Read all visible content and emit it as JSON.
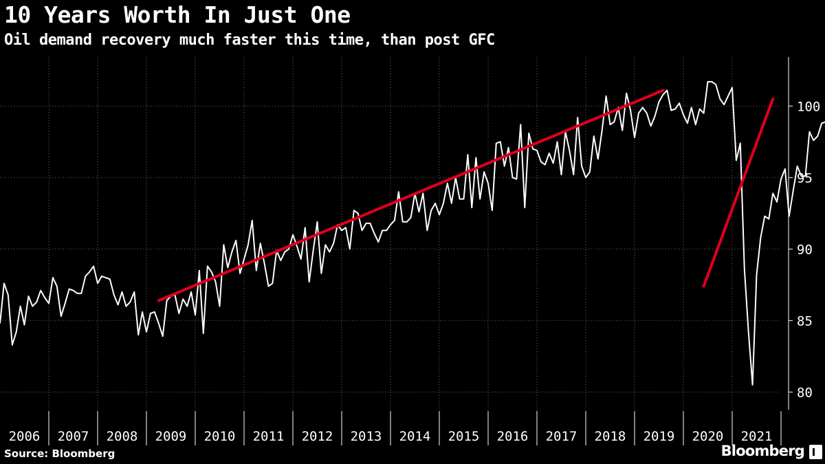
{
  "header": {
    "title": "10 Years Worth In Just One",
    "subtitle": "Oil demand recovery much faster this time, than post GFC"
  },
  "footer": {
    "source": "Source: Bloomberg",
    "brand": "Bloomberg"
  },
  "colors": {
    "background": "#000000",
    "series": "#ffffff",
    "trend": "#e0001b",
    "grid": "#6e6e6e"
  },
  "chart_data": {
    "type": "line",
    "title": "10 Years Worth In Just One",
    "subtitle": "Oil demand recovery much faster this time, than post GFC",
    "xlabel": "",
    "ylabel": "",
    "x_range": [
      "2006-01",
      "2021-12"
    ],
    "ylim": [
      78.5,
      103.5
    ],
    "y_ticks": [
      80,
      85,
      90,
      95,
      100
    ],
    "x_tick_labels": [
      "2006",
      "2007",
      "2008",
      "2009",
      "2010",
      "2011",
      "2012",
      "2013",
      "2014",
      "2015",
      "2016",
      "2017",
      "2018",
      "2019",
      "2020",
      "2021"
    ],
    "y_axis_position": "right",
    "grid": true,
    "legend": "none",
    "series": [
      {
        "start": "2006-01",
        "frequency": "monthly",
        "values": [
          84.8,
          87.6,
          86.8,
          83.3,
          84.2,
          86.0,
          84.7,
          86.7,
          86.0,
          86.3,
          87.1,
          86.6,
          86.2,
          88.0,
          87.4,
          85.3,
          86.2,
          87.2,
          87.1,
          86.9,
          86.9,
          88.1,
          88.4,
          88.8,
          87.6,
          88.1,
          88.0,
          87.9,
          86.8,
          86.1,
          87.0,
          86.0,
          86.3,
          87.0,
          84.0,
          85.6,
          84.2,
          85.5,
          85.6,
          84.8,
          83.9,
          86.4,
          86.7,
          86.8,
          85.5,
          86.5,
          86.0,
          87.0,
          85.4,
          88.5,
          84.1,
          88.8,
          88.4,
          87.7,
          86.0,
          90.3,
          88.7,
          89.8,
          90.6,
          88.3,
          89.3,
          90.3,
          92.0,
          88.5,
          90.4,
          89.0,
          87.4,
          87.6,
          89.9,
          89.2,
          89.8,
          90.0,
          91.0,
          90.2,
          89.3,
          91.5,
          87.7,
          89.9,
          91.9,
          88.3,
          90.3,
          89.8,
          90.4,
          91.7,
          91.3,
          91.5,
          90.0,
          92.7,
          92.5,
          91.3,
          91.8,
          91.8,
          91.1,
          90.5,
          91.3,
          91.3,
          91.7,
          92.0,
          94.0,
          91.9,
          91.9,
          92.2,
          93.9,
          92.6,
          93.9,
          91.3,
          92.7,
          93.2,
          92.4,
          93.2,
          94.6,
          93.2,
          95.0,
          93.5,
          93.5,
          96.6,
          92.9,
          96.4,
          93.5,
          95.4,
          94.6,
          92.7,
          97.4,
          97.5,
          95.8,
          97.1,
          95.0,
          94.9,
          98.7,
          92.9,
          98.1,
          97.0,
          96.9,
          96.1,
          95.9,
          96.7,
          96.0,
          97.5,
          95.2,
          98.2,
          96.9,
          95.2,
          99.2,
          95.8,
          95.0,
          95.4,
          97.9,
          96.3,
          98.3,
          100.7,
          98.7,
          98.9,
          99.9,
          98.3,
          100.9,
          99.7,
          97.8,
          99.5,
          99.9,
          99.5,
          98.6,
          99.3,
          100.3,
          100.8,
          101.1,
          99.7,
          99.8,
          100.2,
          99.4,
          98.8,
          99.9,
          98.7,
          99.8,
          99.5,
          101.7,
          101.7,
          101.5,
          100.5,
          100.1,
          100.7,
          101.3,
          96.2,
          97.4,
          88.6,
          84.2,
          80.5,
          88.2,
          90.8,
          92.3,
          92.1,
          93.9,
          93.3,
          94.9,
          95.6,
          92.3,
          94.1,
          95.8,
          95.1,
          95.1,
          98.2,
          97.6,
          97.9,
          98.8,
          98.9,
          99.8
        ]
      }
    ],
    "trend_lines": [
      {
        "from": [
          "2009-04",
          86.4
        ],
        "to": [
          "2019-08",
          101.1
        ]
      },
      {
        "from": [
          "2020-06",
          87.4
        ],
        "to": [
          "2021-11",
          100.5
        ]
      }
    ]
  }
}
